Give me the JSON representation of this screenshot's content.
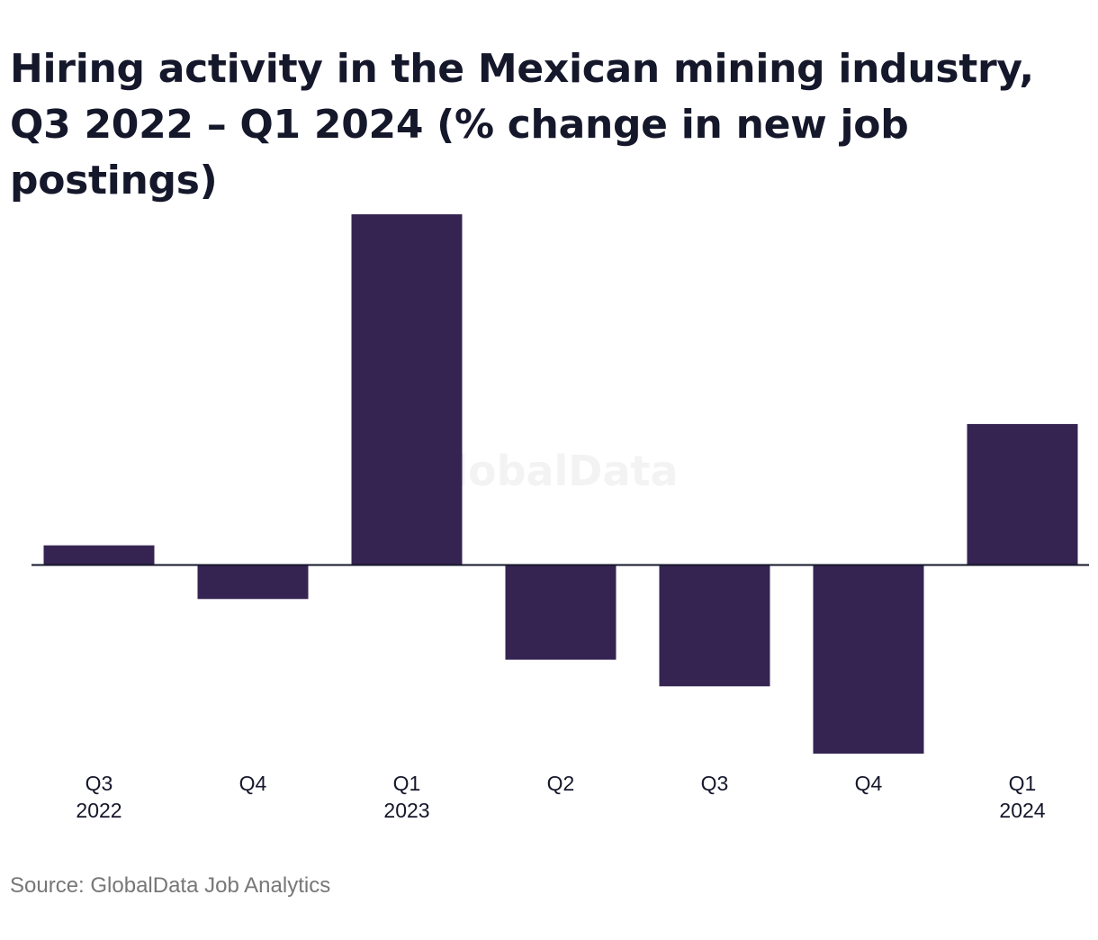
{
  "chart_data": {
    "type": "bar",
    "title": "Hiring activity in the Mexican mining industry, Q3 2022 – Q1 2024 (% change in new job postings)",
    "categories": [
      {
        "quarter": "Q3",
        "year": "2022"
      },
      {
        "quarter": "Q4",
        "year": ""
      },
      {
        "quarter": "Q1",
        "year": "2023"
      },
      {
        "quarter": "Q2",
        "year": ""
      },
      {
        "quarter": "Q3",
        "year": ""
      },
      {
        "quarter": "Q4",
        "year": ""
      },
      {
        "quarter": "Q1",
        "year": "2024"
      }
    ],
    "values": [
      5.6,
      -9.7,
      100,
      -27,
      -34.6,
      -53.8,
      40.2
    ],
    "ylim": [
      -55,
      100
    ],
    "xlabel": "",
    "ylabel": "",
    "grid": false,
    "legend": "none",
    "bar_color": "#352452",
    "watermark": "GlobalData"
  },
  "source": "Source: GlobalData Job Analytics"
}
